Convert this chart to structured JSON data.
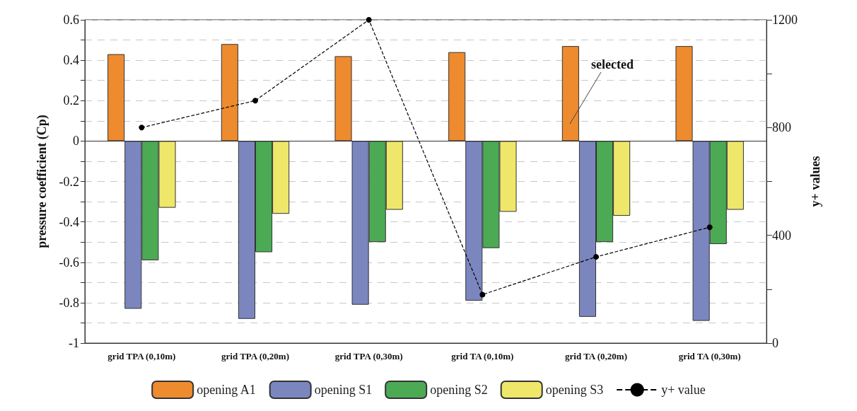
{
  "chart_data": {
    "type": "bar",
    "ylabel": "pressure coefficient (Cp)",
    "y2label": "y+ values",
    "categories": [
      "grid TPA (0,10m)",
      "grid TPA (0,20m)",
      "grid TPA (0,30m)",
      "grid TA (0,10m)",
      "grid TA (0,20m)",
      "grid TA (0,30m)"
    ],
    "series": [
      {
        "name": "opening A1",
        "color": "#ee8b2f",
        "values": [
          0.43,
          0.48,
          0.42,
          0.44,
          0.47,
          0.47
        ]
      },
      {
        "name": "opening S1",
        "color": "#7b86bf",
        "values": [
          -0.83,
          -0.88,
          -0.81,
          -0.79,
          -0.87,
          -0.89
        ]
      },
      {
        "name": "opening S2",
        "color": "#4caa55",
        "values": [
          -0.59,
          -0.55,
          -0.5,
          -0.53,
          -0.5,
          -0.51
        ]
      },
      {
        "name": "opening S3",
        "color": "#efe76a",
        "values": [
          -0.33,
          -0.36,
          -0.34,
          -0.35,
          -0.37,
          -0.34
        ]
      },
      {
        "name": "y+ value",
        "type": "line",
        "axis": "y2",
        "color": "#000000",
        "marker": "circle",
        "line_style": "dashed",
        "values": [
          800,
          900,
          1200,
          180,
          320,
          430
        ]
      }
    ],
    "ylim": [
      -1,
      0.6
    ],
    "yticks": [
      -1,
      {
        "value": -0.9,
        "label": null
      },
      -0.8,
      {
        "value": -0.7,
        "label": null
      },
      -0.6,
      {
        "value": -0.5,
        "label": null
      },
      -0.4,
      {
        "value": -0.3,
        "label": null
      },
      -0.2,
      {
        "value": -0.1,
        "label": null
      },
      0,
      {
        "value": 0.1,
        "label": null
      },
      0.2,
      {
        "value": 0.3,
        "label": null
      },
      0.4,
      {
        "value": 0.5,
        "label": null
      },
      0.6
    ],
    "y2lim": [
      0,
      1200
    ],
    "y2ticks": [
      0,
      {
        "value": 200,
        "label": null
      },
      400,
      {
        "value": 600,
        "label": null
      },
      800,
      {
        "value": 1000,
        "label": null
      },
      1200
    ],
    "annotations": [
      "selected"
    ],
    "grid": "y",
    "legend": "bottom"
  }
}
